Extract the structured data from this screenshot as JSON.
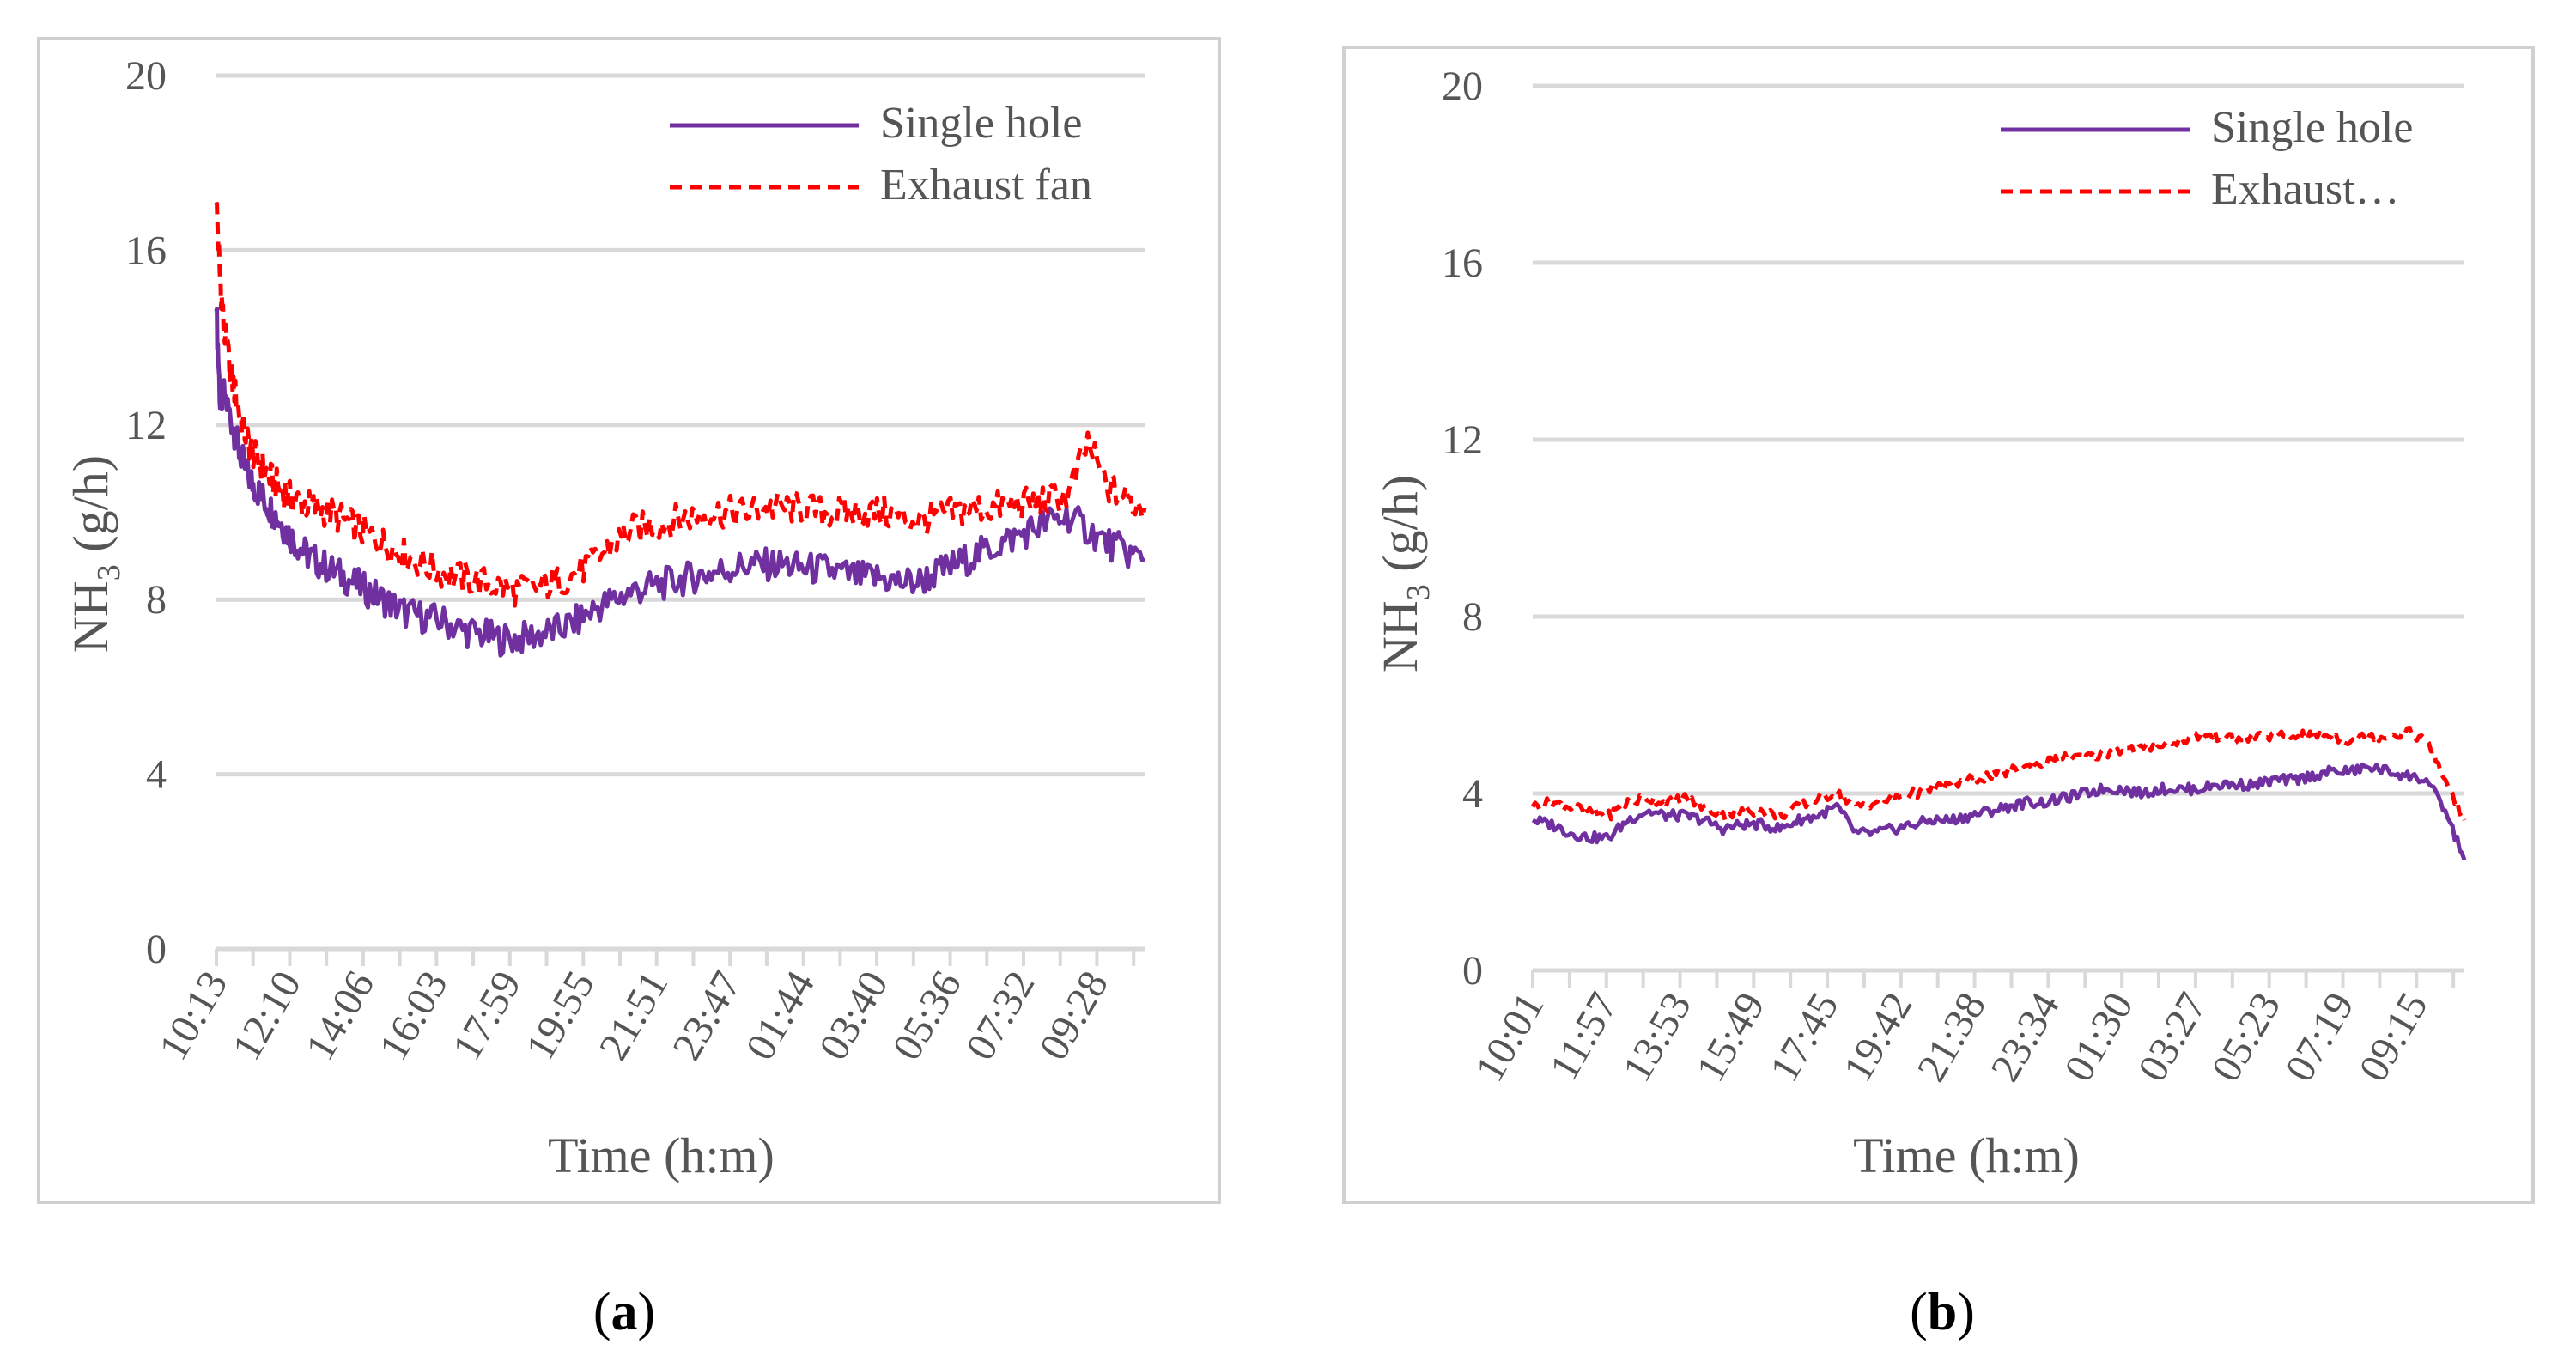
{
  "chart_data": [
    {
      "type": "line",
      "panel_label": "a",
      "xlabel": "Time (h:m)",
      "ylabel_main": "NH",
      "ylabel_sub": "3",
      "ylabel_unit": " (g/h)",
      "ylim": [
        0,
        20
      ],
      "y_ticks": [
        0,
        4,
        8,
        12,
        16,
        20
      ],
      "y_tick_labels": [
        "0",
        "4",
        "8",
        "12",
        "16",
        "20"
      ],
      "x_tick_labels": [
        "10:13",
        "12:10",
        "14:06",
        "16:03",
        "17:59",
        "19:55",
        "21:51",
        "23:47",
        "01:44",
        "03:40",
        "05:36",
        "07:32",
        "09:28"
      ],
      "x_range": [
        0,
        24.5
      ],
      "legend": {
        "position": "top-right",
        "entries": [
          "Single hole",
          "Exhaust fan"
        ]
      },
      "series": [
        {
          "name": "Single hole",
          "color": "#7030a0",
          "style": "solid",
          "x": [
            0,
            0.1,
            0.2,
            0.4,
            0.6,
            0.8,
            1,
            1.25,
            1.5,
            1.75,
            2,
            2.3,
            2.6,
            3,
            3.4,
            3.8,
            4.2,
            4.6,
            5,
            5.5,
            6,
            6.5,
            7,
            7.5,
            8,
            8.5,
            9,
            9.5,
            10,
            10.5,
            11,
            11.5,
            12,
            12.5,
            13,
            13.5,
            14,
            14.5,
            15,
            15.5,
            16,
            16.5,
            17,
            17.5,
            18,
            18.5,
            19,
            19.5,
            20,
            20.5,
            21,
            21.5,
            22,
            22.5,
            23,
            23.5,
            24,
            24.5
          ],
          "y": [
            14.6,
            12.5,
            12.7,
            12.1,
            11.4,
            10.9,
            10.6,
            10.3,
            10,
            9.7,
            9.4,
            9.1,
            8.9,
            8.7,
            8.5,
            8.3,
            8.1,
            7.9,
            7.7,
            7.6,
            7.5,
            7.3,
            7.2,
            7.1,
            7.1,
            7.2,
            7.3,
            7.5,
            7.8,
            8,
            8.2,
            8.3,
            8.4,
            8.5,
            8.6,
            8.7,
            8.8,
            8.8,
            8.8,
            8.7,
            8.7,
            8.6,
            8.5,
            8.5,
            8.4,
            8.4,
            8.6,
            8.8,
            9,
            9.2,
            9.4,
            9.6,
            9.8,
            9.9,
            9.6,
            9.3,
            9.1,
            8.9
          ]
        },
        {
          "name": "Exhaust fan",
          "color": "#ff0000",
          "style": "dashed",
          "x": [
            0,
            0.1,
            0.2,
            0.4,
            0.6,
            0.8,
            1,
            1.25,
            1.5,
            1.75,
            2,
            2.3,
            2.6,
            3,
            3.4,
            3.8,
            4.2,
            4.6,
            5,
            5.5,
            6,
            6.5,
            7,
            7.5,
            8,
            8.5,
            9,
            9.5,
            10,
            10.5,
            11,
            11.5,
            12,
            12.5,
            13,
            13.5,
            14,
            14.5,
            15,
            15.5,
            16,
            16.5,
            17,
            17.5,
            18,
            18.5,
            19,
            19.5,
            20,
            20.5,
            21,
            21.5,
            22,
            22.5,
            23,
            23.5,
            24,
            24.5
          ],
          "y": [
            17.1,
            15.3,
            14.2,
            13.1,
            12.3,
            11.7,
            11.3,
            11,
            10.7,
            10.5,
            10.3,
            10.2,
            10.1,
            10,
            9.8,
            9.6,
            9.4,
            9.2,
            9,
            8.8,
            8.6,
            8.5,
            8.4,
            8.3,
            8.2,
            8.3,
            8.4,
            8.6,
            8.9,
            9.3,
            9.6,
            9.7,
            9.8,
            9.9,
            10,
            10,
            10,
            10.1,
            10.1,
            10.1,
            10,
            10,
            10,
            10,
            9.9,
            9.8,
            9.9,
            10,
            10.1,
            10.1,
            10.2,
            10.2,
            10.3,
            10.4,
            11.6,
            10.6,
            10.3,
            10.1
          ]
        }
      ]
    },
    {
      "type": "line",
      "panel_label": "b",
      "xlabel": "Time (h:m)",
      "ylabel_main": "NH",
      "ylabel_sub": "3",
      "ylabel_unit": " (g/h)",
      "ylim": [
        0,
        20
      ],
      "y_ticks": [
        0,
        4,
        8,
        12,
        16,
        20
      ],
      "y_tick_labels": [
        "0",
        "4",
        "8",
        "12",
        "16",
        "20"
      ],
      "x_tick_labels": [
        "10:01",
        "11:57",
        "13:53",
        "15:49",
        "17:45",
        "19:42",
        "21:38",
        "23:34",
        "01:30",
        "03:27",
        "05:23",
        "07:19",
        "09:15"
      ],
      "x_range": [
        0,
        24.5
      ],
      "legend": {
        "position": "top-right",
        "entries": [
          "Single hole",
          "Exhaust…"
        ]
      },
      "series": [
        {
          "name": "Single hole",
          "color": "#7030a0",
          "style": "solid",
          "x": [
            0,
            0.5,
            1,
            1.5,
            2,
            2.5,
            3,
            3.5,
            4,
            4.5,
            5,
            5.5,
            6,
            6.5,
            7,
            7.5,
            8,
            8.5,
            9,
            9.5,
            10,
            10.5,
            11,
            11.5,
            12,
            12.5,
            13,
            13.5,
            14,
            14.5,
            15,
            15.5,
            16,
            16.5,
            17,
            17.5,
            18,
            18.5,
            19,
            19.5,
            20,
            20.5,
            21,
            21.5,
            22,
            22.5,
            23,
            23.5,
            24,
            24.5
          ],
          "y": [
            3.4,
            3.3,
            3.1,
            3,
            3,
            3.4,
            3.6,
            3.5,
            3.5,
            3.4,
            3.2,
            3.3,
            3.3,
            3.2,
            3.4,
            3.5,
            3.7,
            3.1,
            3.1,
            3.2,
            3.3,
            3.4,
            3.4,
            3.5,
            3.6,
            3.7,
            3.8,
            3.8,
            3.9,
            4,
            4.1,
            4.1,
            4,
            4.1,
            4.1,
            4.1,
            4.2,
            4.2,
            4.2,
            4.3,
            4.3,
            4.4,
            4.5,
            4.5,
            4.6,
            4.5,
            4.4,
            4.3,
            3.6,
            2.5
          ]
        },
        {
          "name": "Exhaust fan",
          "color": "#ff0000",
          "style": "dashed",
          "x": [
            0,
            0.5,
            1,
            1.5,
            2,
            2.5,
            3,
            3.5,
            4,
            4.5,
            5,
            5.5,
            6,
            6.5,
            7,
            7.5,
            8,
            8.5,
            9,
            9.5,
            10,
            10.5,
            11,
            11.5,
            12,
            12.5,
            13,
            13.5,
            14,
            14.5,
            15,
            15.5,
            16,
            16.5,
            17,
            17.5,
            18,
            18.5,
            19,
            19.5,
            20,
            20.5,
            21,
            21.5,
            22,
            22.5,
            23,
            23.5,
            24,
            24.5
          ],
          "y": [
            3.7,
            3.8,
            3.7,
            3.6,
            3.5,
            3.8,
            3.9,
            3.8,
            3.9,
            3.7,
            3.5,
            3.6,
            3.6,
            3.5,
            3.7,
            3.9,
            4,
            3.7,
            3.8,
            3.9,
            4,
            4.1,
            4.2,
            4.3,
            4.4,
            4.5,
            4.6,
            4.7,
            4.8,
            4.8,
            4.9,
            5,
            5,
            5.1,
            5.2,
            5.3,
            5.3,
            5.2,
            5.3,
            5.3,
            5.3,
            5.3,
            5.3,
            5.2,
            5.3,
            5.3,
            5.4,
            5.2,
            4.3,
            3.4
          ]
        }
      ]
    }
  ]
}
